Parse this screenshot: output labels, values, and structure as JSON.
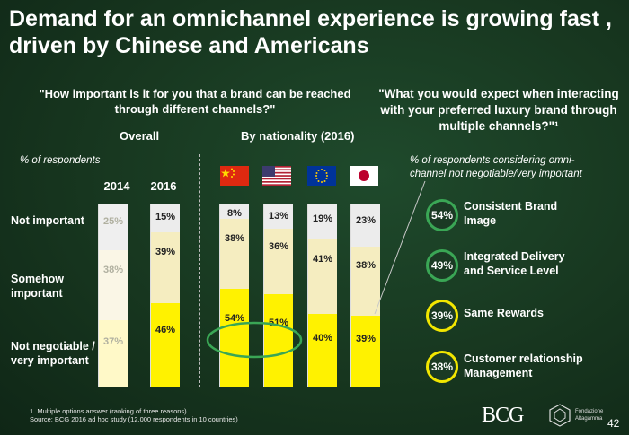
{
  "title": "Demand for an omnichannel experience is growing fast , driven by Chinese and Americans",
  "left_question": "\"How important is it for you that a brand can be reached through different channels?\"",
  "right_question": "\"What you would expect when interacting with your preferred luxury brand through multiple channels?\"¹",
  "overall_label": "Overall",
  "nationality_label": "By nationality (2016)",
  "pct_respondents_label": "% of respondents",
  "right_subtitle": "% of respondents considering omni-channel not negotiable/very important",
  "colors": {
    "faded": "#ececec",
    "light": "#f5edc0",
    "yellow": "#fff200",
    "circle_green": "#3aa655",
    "circle_yellow": "#f2e600"
  },
  "chart_data": [
    {
      "type": "stacked-bar",
      "title": "How important is it for you that a brand can be reached through different channels?",
      "ylabel": "% of respondents",
      "row_labels": [
        "Not important",
        "Somehow important",
        "Not negotiable / very important"
      ],
      "categories": [
        "2014",
        "2016",
        "China",
        "USA",
        "Europe",
        "Japan"
      ],
      "series": [
        {
          "name": "Not negotiable / very important",
          "values": [
            37,
            46,
            54,
            51,
            40,
            39
          ],
          "labels": [
            "37%",
            "46%",
            "54%",
            "51%",
            "40%",
            "39%"
          ]
        },
        {
          "name": "Somehow important",
          "values": [
            38,
            39,
            38,
            36,
            41,
            38
          ],
          "labels": [
            "38%",
            "39%",
            "38%",
            "36%",
            "41%",
            "38%"
          ]
        },
        {
          "name": "Not important",
          "values": [
            25,
            15,
            8,
            13,
            19,
            23
          ],
          "labels": [
            "25%",
            "15%",
            "8%",
            "13%",
            "19%",
            "23%"
          ]
        }
      ]
    },
    {
      "type": "list",
      "title": "% of respondents considering omni-channel not negotiable/very important",
      "items": [
        {
          "label": "Consistent Brand Image",
          "value": 54,
          "text": "54%",
          "color": "green"
        },
        {
          "label": "Integrated Delivery and Service Level",
          "value": 49,
          "text": "49%",
          "color": "green"
        },
        {
          "label": "Same Rewards",
          "value": 39,
          "text": "39%",
          "color": "yellow"
        },
        {
          "label": "Customer relationship Management",
          "value": 38,
          "text": "38%",
          "color": "yellow"
        }
      ]
    }
  ],
  "footnote1": "1. Multiple options answer (ranking of three reasons)",
  "footnote2": "Source: BCG 2016 ad hoc study (12,000 respondents in 10 countries)",
  "bcg_logo": "BCG",
  "partner_logo": "Fondazione Altagamma",
  "page_number": "42"
}
